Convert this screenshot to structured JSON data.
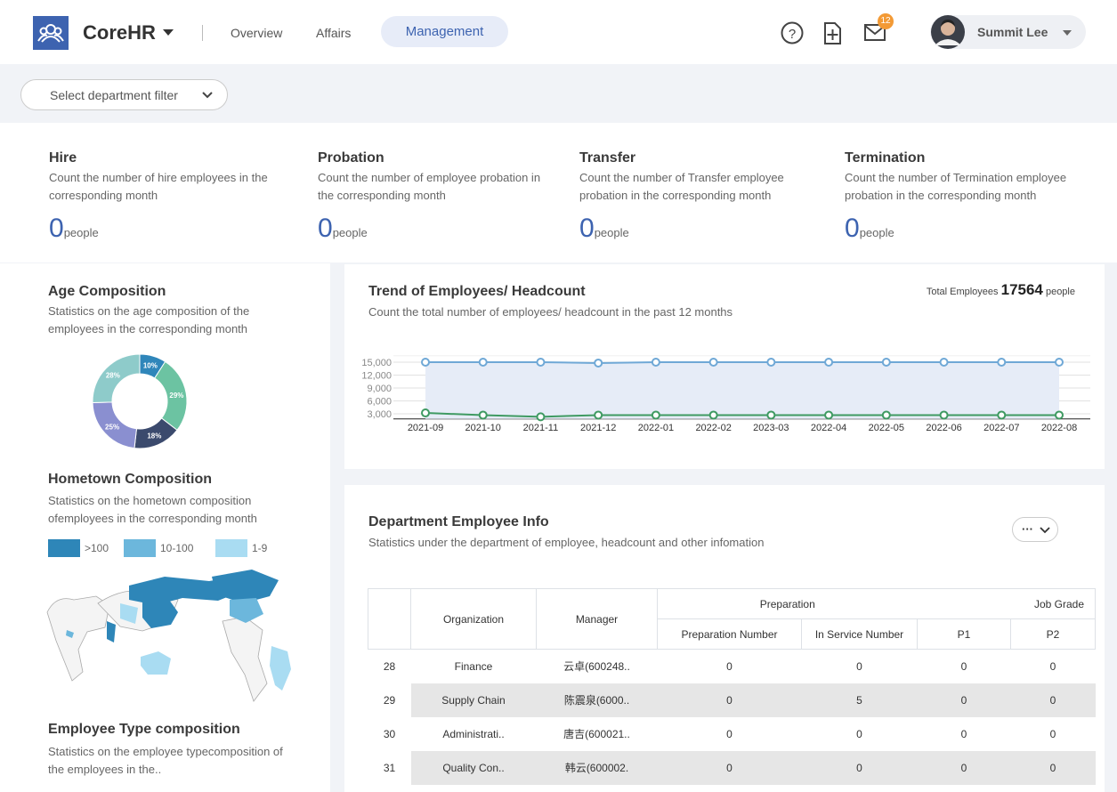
{
  "header": {
    "brand": "CoreHR",
    "nav": [
      "Overview",
      "Affairs",
      "Management"
    ],
    "notification_count": "12",
    "user": "Summit Lee"
  },
  "filter": {
    "placeholder": "Select department filter"
  },
  "stats": [
    {
      "title": "Hire",
      "description": "Count the number of hire employees in the corresponding month",
      "value": 0,
      "unit": "people"
    },
    {
      "title": "Probation",
      "description": "Count the number of employee probation in the corresponding month",
      "value": 0,
      "unit": "people"
    },
    {
      "title": "Transfer",
      "description": "Count the number of Transfer employee probation in the corresponding month",
      "value": 0,
      "unit": "people"
    },
    {
      "title": "Termination",
      "description": "Count the number of Termination employee probation in the corresponding month",
      "value": 0,
      "unit": "people"
    }
  ],
  "chart_data": [
    {
      "type": "donut",
      "title": "Age Composition",
      "subtitle": "Statistics on the age composition of the employees in the corresponding month",
      "values": [
        10,
        29,
        18,
        25,
        28
      ],
      "value_labels": [
        "10%",
        "29%",
        "18%",
        "25%",
        "28%"
      ],
      "colors": [
        "#2f86ba",
        "#6cc3a2",
        "#3b4a6d",
        "#8a8fd0",
        "#8ecbca"
      ]
    },
    {
      "type": "line",
      "title": "Trend of Employees/ Headcount",
      "subtitle": "Count the total number of employees/ headcount in the past 12 months",
      "total_label": "Total Employees",
      "total_value": 17564,
      "total_unit": "people",
      "x": [
        "2021-09",
        "2021-10",
        "2021-11",
        "2021-12",
        "2022-01",
        "2022-02",
        "2023-03",
        "2022-04",
        "2022-05",
        "2022-06",
        "2022-07",
        "2022-08"
      ],
      "series": [
        {
          "color": "#6fa8d6",
          "values": [
            15000,
            15000,
            15000,
            14800,
            15000,
            15000,
            15000,
            15000,
            15000,
            15000,
            15000,
            15000
          ]
        },
        {
          "color": "#3f9a62",
          "values": [
            3200,
            2700,
            2300,
            2700,
            2700,
            2700,
            2700,
            2700,
            2700,
            2700,
            2700,
            2700
          ]
        }
      ],
      "ylim": [
        1800,
        16500
      ],
      "yticks": [
        {
          "value": 3000,
          "label": "3,000"
        },
        {
          "value": 6000,
          "label": "6,000"
        },
        {
          "value": 9000,
          "label": "9,000"
        },
        {
          "value": 12000,
          "label": "12,000"
        },
        {
          "value": 15000,
          "label": "15,000"
        }
      ],
      "grid": true
    }
  ],
  "hometown": {
    "title": "Hometown Composition",
    "description": "Statistics on the hometown composition ofemployees in the corresponding month",
    "legend": [
      {
        "label": ">100",
        "color": "#2e86b8"
      },
      {
        "label": "10-100",
        "color": "#6cb7dc"
      },
      {
        "label": "1-9",
        "color": "#a9dcf2"
      }
    ]
  },
  "employee_type": {
    "title": "Employee Type composition",
    "description": "Statistics on the employee typecomposition of the employees in the.."
  },
  "department_table": {
    "title": "Department Employee Info",
    "description": "Statistics under the department of employee, headcount and other infomation",
    "menu": "···",
    "header_groups": [
      "Preparation",
      "Job Grade"
    ],
    "headers": [
      "Organization",
      "Manager",
      "Preparation Number",
      "In Service Number",
      "P1",
      "P2"
    ],
    "rows": [
      [
        28,
        "Finance",
        "云卓(600248..",
        0,
        0,
        0,
        0
      ],
      [
        29,
        "Supply Chain",
        "陈震泉(6000..",
        0,
        5,
        0,
        0
      ],
      [
        30,
        "Administrati..",
        "唐吉(600021..",
        0,
        0,
        0,
        0
      ],
      [
        31,
        "Quality Con..",
        "韩云(600002.",
        0,
        0,
        0,
        0
      ]
    ]
  }
}
